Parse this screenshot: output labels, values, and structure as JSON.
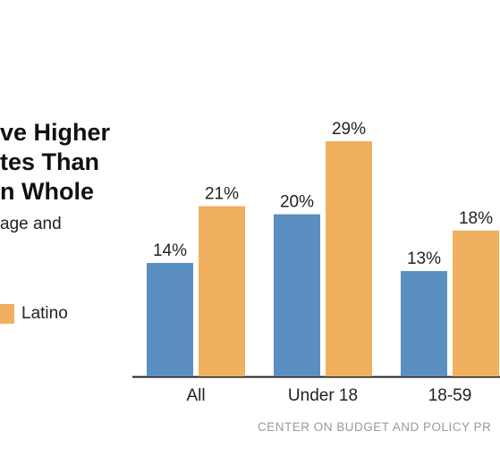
{
  "title_lines": [
    "ve Higher",
    "tes Than",
    "n Whole"
  ],
  "subtitle": "age and",
  "legend": {
    "label": "Latino"
  },
  "colors": {
    "series_1": "#5b8fc2",
    "series_2": "#f0b060",
    "axis": "#222222",
    "footer": "#9a9a9a"
  },
  "footer": "CENTER ON BUDGET AND POLICY PR",
  "chart_data": {
    "type": "bar",
    "categories": [
      "All",
      "Under 18",
      "18-59"
    ],
    "series": [
      {
        "values": [
          14,
          20,
          13
        ],
        "value_labels": [
          "14%",
          "20%",
          "13%"
        ]
      },
      {
        "name": "Latino",
        "values": [
          21,
          29,
          18
        ],
        "value_labels": [
          "21%",
          "29%",
          "18%"
        ]
      }
    ],
    "ylim": [
      0,
      29
    ],
    "grid": false
  }
}
